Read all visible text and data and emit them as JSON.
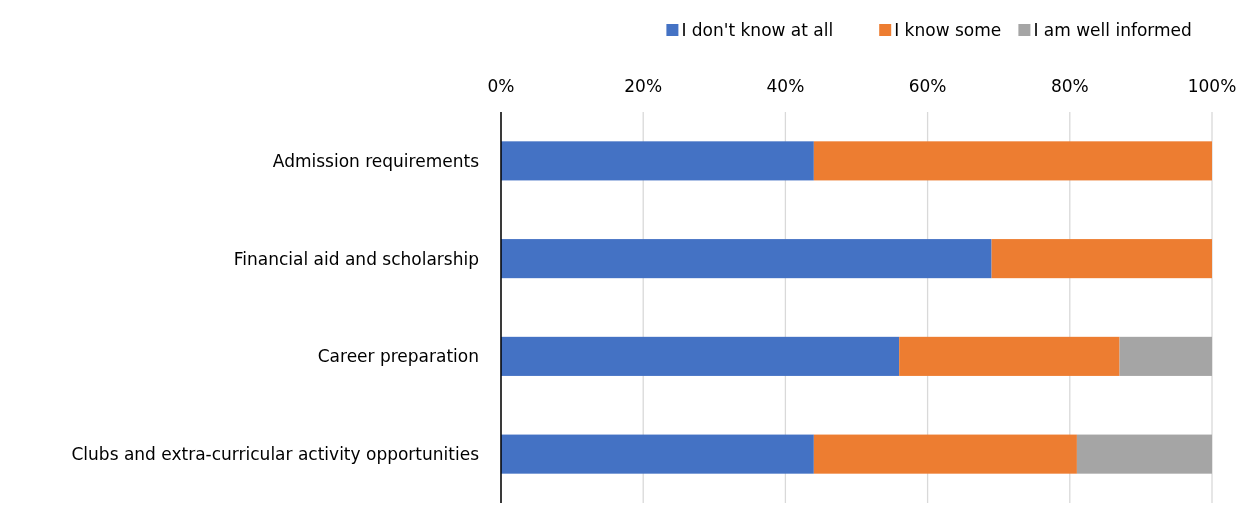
{
  "chart_data": {
    "type": "bar",
    "orientation": "horizontal",
    "stacked": true,
    "categories": [
      "Admission requirements",
      "Financial aid and scholarship",
      "Career preparation",
      "Clubs and extra-curricular activity opportunities"
    ],
    "series": [
      {
        "name": "I don't know at all",
        "color": "#4472c4",
        "values": [
          44,
          69,
          56,
          44
        ]
      },
      {
        "name": "I know some",
        "color": "#ed7d31",
        "values": [
          56,
          31,
          31,
          37
        ]
      },
      {
        "name": "I am well informed",
        "color": "#a5a5a5",
        "values": [
          0,
          0,
          13,
          19
        ]
      }
    ],
    "xlim": [
      0,
      100
    ],
    "xticks": [
      {
        "value": 0,
        "label": "0%"
      },
      {
        "value": 20,
        "label": "20%"
      },
      {
        "value": 40,
        "label": "40%"
      },
      {
        "value": 60,
        "label": "60%"
      },
      {
        "value": 80,
        "label": "80%"
      },
      {
        "value": 100,
        "label": "100%"
      }
    ],
    "grid": "x",
    "legend": "top right"
  }
}
